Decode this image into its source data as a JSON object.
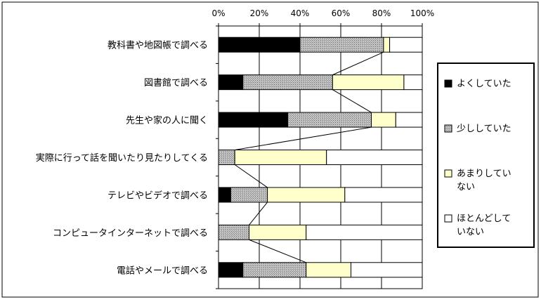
{
  "chart_data": {
    "type": "bar",
    "orientation": "horizontal",
    "stacked": "percent",
    "categories": [
      "教科書や地図帳で調べる",
      "図書館で調べる",
      "先生や家の人に聞く",
      "実際に行って話を聞いたり見たりしてくる",
      "テレビやビデオで調べる",
      "コンピュータインターネットで調べる",
      "電話やメールで調べる"
    ],
    "series": [
      {
        "name": "よくしていた",
        "values": [
          40,
          12,
          34,
          0,
          6,
          0,
          12
        ],
        "color": "#000000",
        "pattern": "solid"
      },
      {
        "name": "少ししていた",
        "values": [
          41,
          44,
          41,
          8,
          18,
          15,
          31
        ],
        "color": "#b0b0b0",
        "pattern": "dotted-gray"
      },
      {
        "name": "あまりしていない",
        "values": [
          3,
          35,
          12,
          45,
          38,
          28,
          22
        ],
        "color": "#ffffcc",
        "pattern": "solid"
      },
      {
        "name": "ほとんどしていない",
        "values": [
          16,
          9,
          13,
          47,
          38,
          57,
          35
        ],
        "color": "#ffffff",
        "pattern": "solid"
      }
    ],
    "xlim": [
      0,
      100
    ],
    "x_ticks": [
      "0%",
      "20%",
      "40%",
      "60%",
      "80%",
      "100%"
    ],
    "x_axis_position": "top",
    "gridlines": "vertical",
    "series_lines": true,
    "legend": {
      "placement": "right",
      "labels": [
        "よくしていた",
        "少ししていた",
        "あまりしていない",
        "ほとんどしていない"
      ]
    },
    "title": "",
    "xlabel": "",
    "ylabel": ""
  }
}
